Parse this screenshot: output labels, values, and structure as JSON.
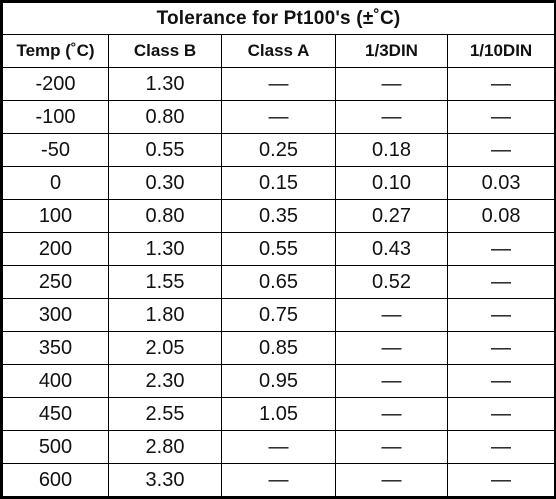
{
  "table": {
    "title": "Tolerance for Pt100's (±˚C)",
    "headers": [
      "Temp (˚C)",
      "Class B",
      "Class A",
      "1/3DIN",
      "1/10DIN"
    ],
    "rows": [
      [
        "-200",
        "1.30",
        "—",
        "—",
        "—"
      ],
      [
        "-100",
        "0.80",
        "—",
        "—",
        "—"
      ],
      [
        "-50",
        "0.55",
        "0.25",
        "0.18",
        "—"
      ],
      [
        "0",
        "0.30",
        "0.15",
        "0.10",
        "0.03"
      ],
      [
        "100",
        "0.80",
        "0.35",
        "0.27",
        "0.08"
      ],
      [
        "200",
        "1.30",
        "0.55",
        "0.43",
        "—"
      ],
      [
        "250",
        "1.55",
        "0.65",
        "0.52",
        "—"
      ],
      [
        "300",
        "1.80",
        "0.75",
        "—",
        "—"
      ],
      [
        "350",
        "2.05",
        "0.85",
        "—",
        "—"
      ],
      [
        "400",
        "2.30",
        "0.95",
        "—",
        "—"
      ],
      [
        "450",
        "2.55",
        "1.05",
        "—",
        "—"
      ],
      [
        "500",
        "2.80",
        "—",
        "—",
        "—"
      ],
      [
        "600",
        "3.30",
        "—",
        "—",
        "—"
      ]
    ]
  }
}
